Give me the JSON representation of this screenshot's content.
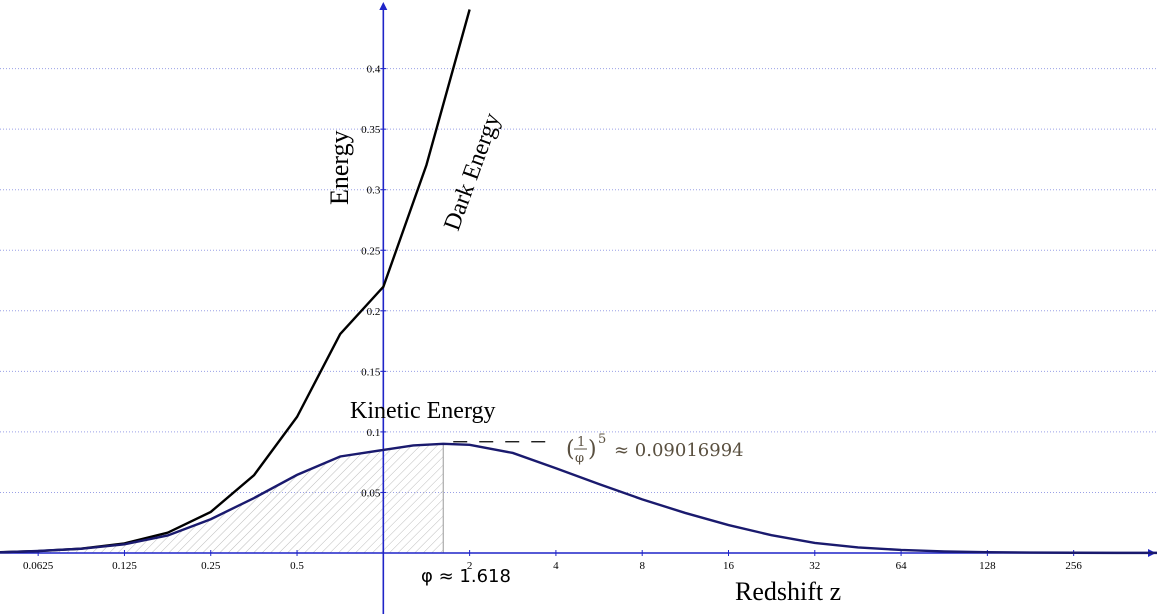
{
  "chart_data": {
    "type": "line",
    "x_scale": "log2",
    "xlim": [
      0.046,
      500
    ],
    "ylim": [
      -0.048,
      0.445
    ],
    "grid": "horizontal-dotted",
    "x_ticks": [
      {
        "value": 0.0625,
        "label": "0.0625"
      },
      {
        "value": 0.125,
        "label": "0.125"
      },
      {
        "value": 0.25,
        "label": "0.25"
      },
      {
        "value": 0.5,
        "label": "0.5"
      },
      {
        "value": 2,
        "label": "2"
      },
      {
        "value": 4,
        "label": "4"
      },
      {
        "value": 8,
        "label": "8"
      },
      {
        "value": 16,
        "label": "16"
      },
      {
        "value": 32,
        "label": "32"
      },
      {
        "value": 64,
        "label": "64"
      },
      {
        "value": 128,
        "label": "128"
      },
      {
        "value": 256,
        "label": "256"
      }
    ],
    "y_ticks": [
      {
        "value": 0.05,
        "label": "0.05"
      },
      {
        "value": 0.1,
        "label": "0.1"
      },
      {
        "value": 0.15,
        "label": "0.15"
      },
      {
        "value": 0.2,
        "label": "0.2"
      },
      {
        "value": 0.25,
        "label": "0.25"
      },
      {
        "value": 0.3,
        "label": "0.3"
      },
      {
        "value": 0.35,
        "label": "0.35"
      },
      {
        "value": 0.4,
        "label": "0.4"
      }
    ],
    "xlabel": "Redshift z",
    "ylabel": "Energy",
    "series": [
      {
        "name": "Dark Energy",
        "color": "#000000",
        "x": [
          0.046,
          0.0625,
          0.088,
          0.125,
          0.177,
          0.25,
          0.354,
          0.5,
          0.707,
          1.0,
          1.414,
          2.0
        ],
        "y": [
          0.0007,
          0.0016,
          0.0036,
          0.0079,
          0.0168,
          0.0339,
          0.0643,
          0.1124,
          0.1808,
          0.2198,
          0.3204,
          0.4488
        ]
      },
      {
        "name": "Kinetic Energy",
        "color": "#1a1a6e",
        "x": [
          0.046,
          0.0625,
          0.088,
          0.125,
          0.177,
          0.25,
          0.354,
          0.5,
          0.707,
          1.0,
          1.272,
          1.618,
          2.0,
          2.83,
          4.0,
          5.66,
          8.0,
          11.3,
          16.0,
          22.6,
          32.0,
          45.3,
          64.0,
          90.5,
          128.0,
          181.0,
          256.0,
          362.0,
          500.0
        ],
        "y": [
          0.0006,
          0.0017,
          0.0035,
          0.0072,
          0.0145,
          0.0279,
          0.0454,
          0.0645,
          0.0797,
          0.0851,
          0.0888,
          0.0902,
          0.0893,
          0.0826,
          0.07,
          0.0569,
          0.0443,
          0.0331,
          0.0231,
          0.0147,
          0.0083,
          0.0046,
          0.0025,
          0.0013,
          0.0007,
          0.0004,
          0.0002,
          0.0001,
          0.0001
        ]
      }
    ],
    "shaded_region": {
      "from": 0.046,
      "to": 1.618,
      "under": "Kinetic Energy",
      "pattern": "diagonal-hatch"
    },
    "annotations": {
      "peak_note": "≈ 0.09016994",
      "phi_label": "φ ≈ 1.618",
      "dark_energy_label": "Dark Energy",
      "kinetic_label": "Kinetic Energy"
    }
  }
}
